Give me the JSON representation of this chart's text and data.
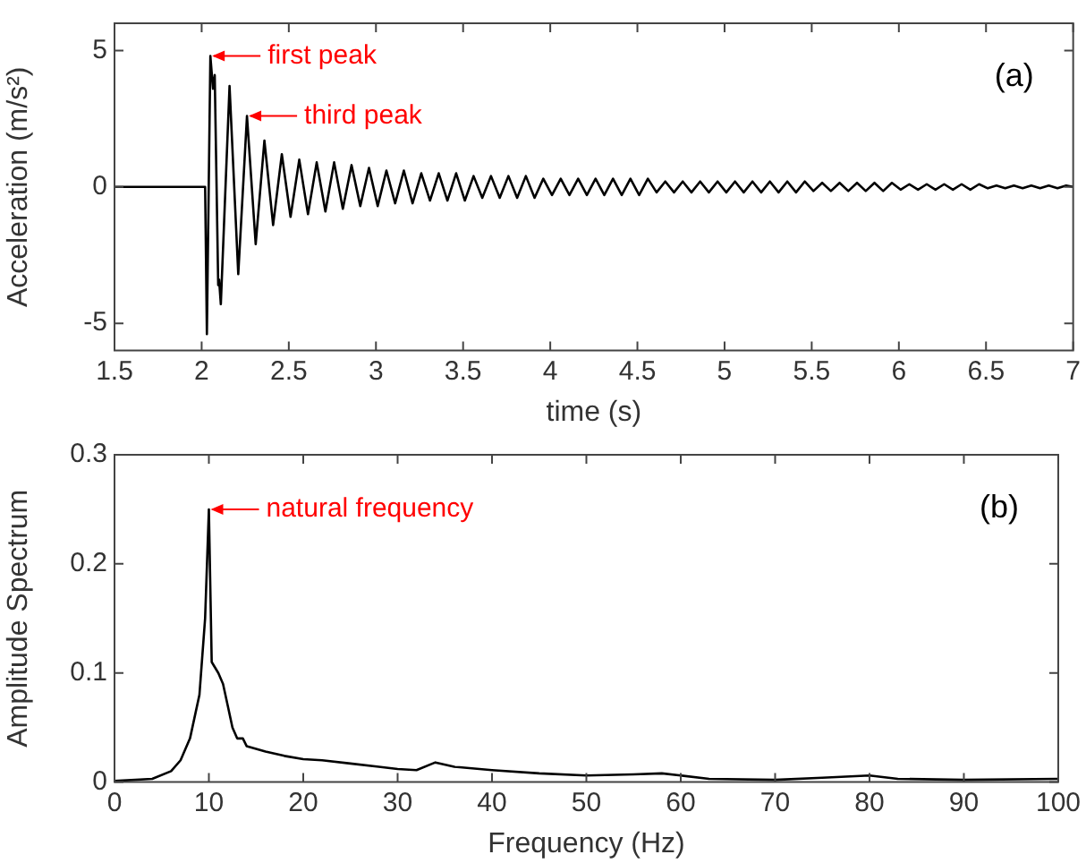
{
  "chart_data": [
    {
      "type": "line",
      "xlabel": "time (s)",
      "ylabel": "Acceleration (m/s²)",
      "xlim": [
        1.5,
        7
      ],
      "xticks": [
        1.5,
        2,
        2.5,
        3,
        3.5,
        4,
        4.5,
        5,
        5.5,
        6,
        6.5,
        7
      ],
      "ylim": [
        -6,
        6
      ],
      "yticks": [
        -5,
        0,
        5
      ],
      "grid": false,
      "legend": false,
      "marker": "none",
      "annotations": [
        {
          "text": "first peak",
          "x": 2.05,
          "y": 4.8
        },
        {
          "text": "third peak",
          "x": 2.26,
          "y": 2.6
        },
        "(a)"
      ],
      "series": [
        {
          "color": "#000000",
          "x": [
            1.5,
            2.02,
            2.03,
            2.05,
            2.065,
            2.075,
            2.095,
            2.1,
            2.11,
            2.16,
            2.21,
            2.26,
            2.31,
            2.36,
            2.41,
            2.46,
            2.51,
            2.56,
            2.61,
            2.66,
            2.71,
            2.76,
            2.81,
            2.86,
            2.91,
            2.96,
            3.01,
            3.06,
            3.11,
            3.16,
            3.21,
            3.26,
            3.31,
            3.36,
            3.41,
            3.46,
            3.51,
            3.56,
            3.61,
            3.66,
            3.71,
            3.76,
            3.81,
            3.86,
            3.91,
            3.96,
            4.01,
            4.06,
            4.11,
            4.16,
            4.21,
            4.26,
            4.31,
            4.36,
            4.41,
            4.46,
            4.51,
            4.56,
            4.61,
            4.66,
            4.71,
            4.76,
            4.81,
            4.86,
            4.91,
            4.96,
            5.01,
            5.06,
            5.11,
            5.16,
            5.21,
            5.26,
            5.31,
            5.36,
            5.41,
            5.46,
            5.51,
            5.56,
            5.61,
            5.66,
            5.71,
            5.76,
            5.81,
            5.86,
            5.91,
            5.96,
            6.01,
            6.06,
            6.11,
            6.16,
            6.21,
            6.26,
            6.31,
            6.36,
            6.41,
            6.46,
            6.51,
            6.56,
            6.61,
            6.66,
            6.71,
            6.76,
            6.81,
            6.86,
            6.91,
            6.96,
            7.0
          ],
          "values": [
            0,
            0,
            -5.4,
            4.8,
            3.6,
            4.1,
            -3.6,
            -3.4,
            -4.3,
            3.7,
            -3.2,
            2.6,
            -2.1,
            1.7,
            -1.4,
            1.2,
            -1.1,
            1.0,
            -1.0,
            0.9,
            -0.9,
            0.9,
            -0.8,
            0.8,
            -0.7,
            0.7,
            -0.7,
            0.6,
            -0.6,
            0.6,
            -0.6,
            0.5,
            -0.5,
            0.5,
            -0.5,
            0.5,
            -0.5,
            0.4,
            -0.4,
            0.4,
            -0.4,
            0.4,
            -0.4,
            0.4,
            -0.4,
            0.3,
            -0.3,
            0.3,
            -0.3,
            0.3,
            -0.3,
            0.3,
            -0.3,
            0.3,
            -0.3,
            0.3,
            -0.3,
            0.3,
            -0.2,
            0.2,
            -0.2,
            0.2,
            -0.2,
            0.2,
            -0.2,
            0.2,
            -0.2,
            0.2,
            -0.2,
            0.2,
            -0.2,
            0.2,
            -0.2,
            0.2,
            -0.2,
            0.2,
            -0.15,
            0.15,
            -0.15,
            0.15,
            -0.15,
            0.15,
            -0.15,
            0.15,
            -0.15,
            0.15,
            -0.1,
            0.1,
            -0.1,
            0.1,
            -0.1,
            0.1,
            -0.1,
            0.1,
            -0.1,
            0.1,
            -0.05,
            0.05,
            -0.05,
            0.05,
            -0.05,
            0.05,
            -0.05,
            0.05,
            -0.05,
            0.05,
            0
          ]
        }
      ]
    },
    {
      "type": "line",
      "xlabel": "Frequency (Hz)",
      "ylabel": "Amplitude Spectrum",
      "xlim": [
        0,
        100
      ],
      "xticks": [
        0,
        10,
        20,
        30,
        40,
        50,
        60,
        70,
        80,
        90,
        100
      ],
      "ylim": [
        0,
        0.3
      ],
      "yticks": [
        0,
        0.1,
        0.2,
        0.3
      ],
      "grid": false,
      "legend": false,
      "marker": "none",
      "annotations": [
        {
          "text": "natural frequency",
          "x": 10,
          "y": 0.25
        },
        "(b)"
      ],
      "series": [
        {
          "color": "#000000",
          "x": [
            0,
            4,
            6,
            7,
            8,
            9,
            9.6,
            10,
            10.3,
            11,
            11.5,
            12,
            12.5,
            13,
            13.6,
            14,
            16,
            18,
            20,
            22,
            25,
            28,
            30,
            32,
            34,
            36,
            40,
            45,
            50,
            55,
            58,
            60,
            63,
            70,
            75,
            80,
            83,
            90,
            100
          ],
          "values": [
            0.001,
            0.003,
            0.01,
            0.02,
            0.04,
            0.08,
            0.15,
            0.25,
            0.11,
            0.1,
            0.09,
            0.07,
            0.05,
            0.04,
            0.04,
            0.033,
            0.028,
            0.024,
            0.021,
            0.02,
            0.017,
            0.014,
            0.012,
            0.011,
            0.018,
            0.014,
            0.011,
            0.008,
            0.006,
            0.007,
            0.008,
            0.006,
            0.003,
            0.002,
            0.004,
            0.006,
            0.003,
            0.002,
            0.003
          ]
        }
      ]
    }
  ]
}
